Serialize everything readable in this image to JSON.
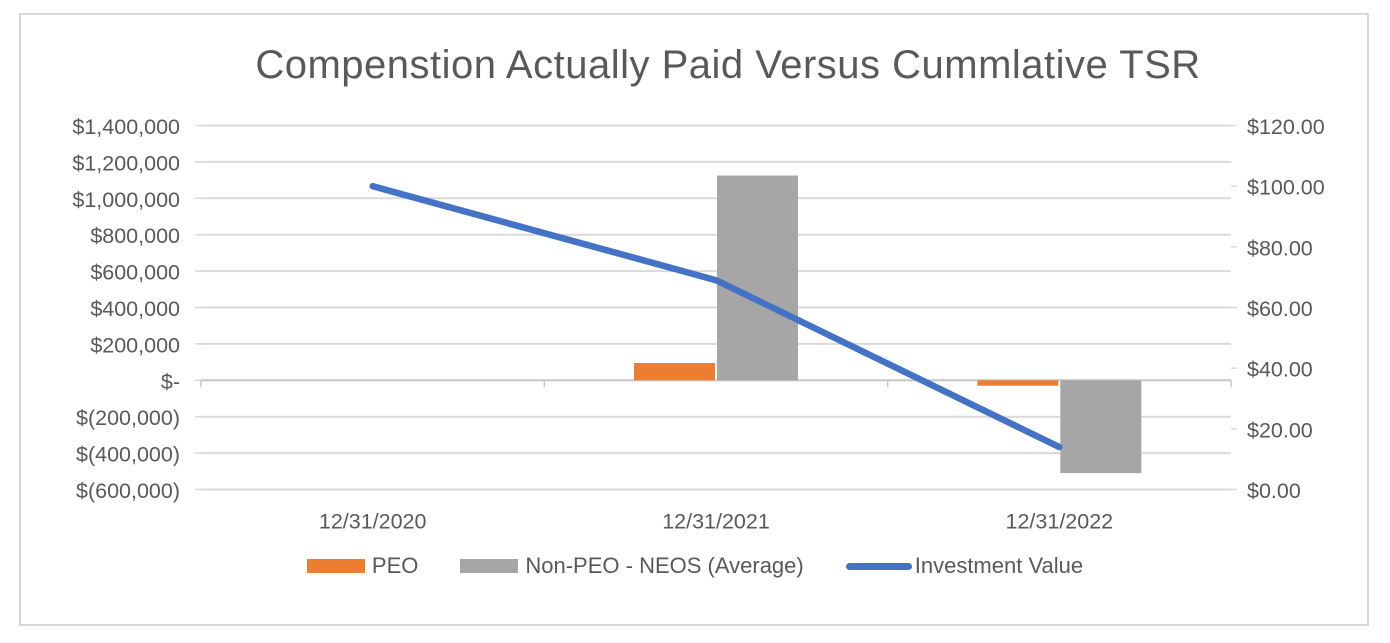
{
  "title": "Compenstion Actually Paid Versus Cummlative TSR",
  "colors": {
    "peo": "#ED7D31",
    "non_peo": "#A6A6A6",
    "line": "#4472C4",
    "text": "#595959",
    "gridline": "#D9D9D9",
    "axis_line": "#C9C9C9",
    "frame_border": "#D8D8D8",
    "background": "#FFFFFF"
  },
  "chart_data": {
    "type": "bar",
    "subtype": "clustered bars with overlaid line (dual axis)",
    "title": "Compenstion Actually Paid Versus Cummlative TSR",
    "categories": [
      "12/31/2020",
      "12/31/2021",
      "12/31/2022"
    ],
    "series": [
      {
        "name": "PEO",
        "type": "bar",
        "axis": "left",
        "color": "#ED7D31",
        "values": [
          0,
          95000,
          -30000
        ]
      },
      {
        "name": "Non-PEO - NEOS (Average)",
        "type": "bar",
        "axis": "left",
        "color": "#A6A6A6",
        "values": [
          0,
          1125000,
          -510000
        ]
      },
      {
        "name": "Investment Value",
        "type": "line",
        "axis": "right",
        "color": "#4472C4",
        "values": [
          100,
          69,
          14
        ]
      }
    ],
    "left_axis": {
      "min": -600000,
      "max": 1400000,
      "step": 200000,
      "tick_labels": [
        "$1,400,000",
        "$1,200,000",
        "$1,000,000",
        "$800,000",
        "$600,000",
        "$400,000",
        "$200,000",
        "$-",
        "$(200,000)",
        "$(400,000)",
        "$(600,000)"
      ]
    },
    "right_axis": {
      "min": 0,
      "max": 120,
      "step": 20,
      "tick_labels": [
        "$120.00",
        "$100.00",
        "$80.00",
        "$60.00",
        "$40.00",
        "$20.00",
        "$0.00"
      ]
    },
    "grid": "horizontal",
    "legend_position": "bottom"
  }
}
